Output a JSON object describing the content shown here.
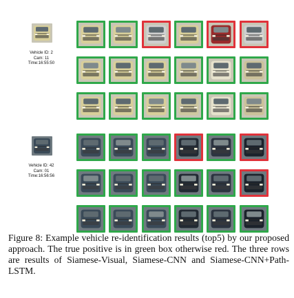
{
  "caption": "Figure 8: Example vehicle re-identification results (top5) by our proposed approach. The true positive is in green box otherwise red. The three rows are results of Siamese-Visual, Siamese-CNN and Siamese-CNN+Path-LSTM.",
  "colors": {
    "true_positive": "#2fa84a",
    "false_positive": "#e0323a"
  },
  "queries": [
    {
      "id_line": "Vehicle ID: 2",
      "cam_line": "Cam: 11",
      "time_line": "Time:16:55:50",
      "vehicle_color": "#d8cf9a",
      "rows": [
        {
          "method": "Siamese-Visual",
          "results": [
            "true",
            "true",
            "false",
            "true",
            "false",
            "false"
          ]
        },
        {
          "method": "Siamese-CNN",
          "results": [
            "true",
            "true",
            "true",
            "true",
            "true",
            "true"
          ]
        },
        {
          "method": "Siamese-CNN+Path-LSTM",
          "results": [
            "true",
            "true",
            "true",
            "true",
            "true",
            "true"
          ]
        }
      ]
    },
    {
      "id_line": "Vehicle ID: 42",
      "cam_line": "Cam: 01",
      "time_line": "Time:16:56:56",
      "vehicle_color": "#3a4a58",
      "rows": [
        {
          "method": "Siamese-Visual",
          "results": [
            "true",
            "true",
            "true",
            "false",
            "true",
            "false"
          ]
        },
        {
          "method": "Siamese-CNN",
          "results": [
            "true",
            "true",
            "true",
            "true",
            "true",
            "false"
          ]
        },
        {
          "method": "Siamese-CNN+Path-LSTM",
          "results": [
            "true",
            "true",
            "true",
            "true",
            "true",
            "true"
          ]
        }
      ]
    }
  ]
}
